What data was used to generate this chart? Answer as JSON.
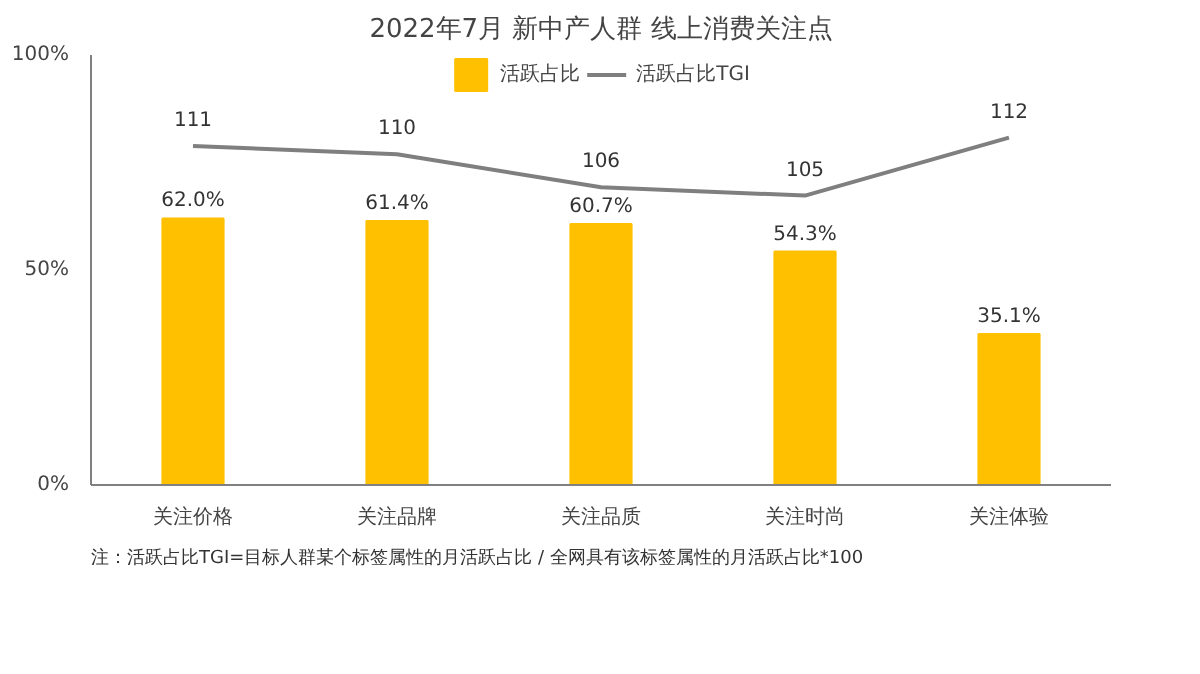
{
  "chart_data": {
    "type": "bar",
    "title": "2022年7月 新中产人群 线上消费关注点",
    "categories": [
      "关注价格",
      "关注品牌",
      "关注品质",
      "关注时尚",
      "关注体验"
    ],
    "series": [
      {
        "name": "活跃占比",
        "color": "#ffc000",
        "values": [
          62.0,
          61.4,
          60.7,
          54.3,
          35.1
        ],
        "value_labels": [
          "62.0%",
          "61.4%",
          "60.7%",
          "54.3%",
          "35.1%"
        ]
      },
      {
        "name": "活跃占比TGI",
        "type": "line",
        "axis": "y2",
        "color": "#7f7f7f",
        "values": [
          111,
          110,
          106,
          105,
          112
        ],
        "value_labels": [
          "111",
          "110",
          "106",
          "105",
          "112"
        ]
      }
    ],
    "ylim": [
      0,
      100
    ],
    "yticks": [
      {
        "value": 0,
        "label": "0%"
      },
      {
        "value": 50,
        "label": "50%"
      },
      {
        "value": 100,
        "label": "100%"
      }
    ],
    "y2lim": [
      70,
      122
    ],
    "legend": "top",
    "grid": false,
    "marker": "none",
    "line_style": "solid",
    "annotations": [
      "注：活跃占比TGI=目标人群某个标签属性的月活跃占比 / 全网具有该标签属性的月活跃占比*100"
    ]
  }
}
